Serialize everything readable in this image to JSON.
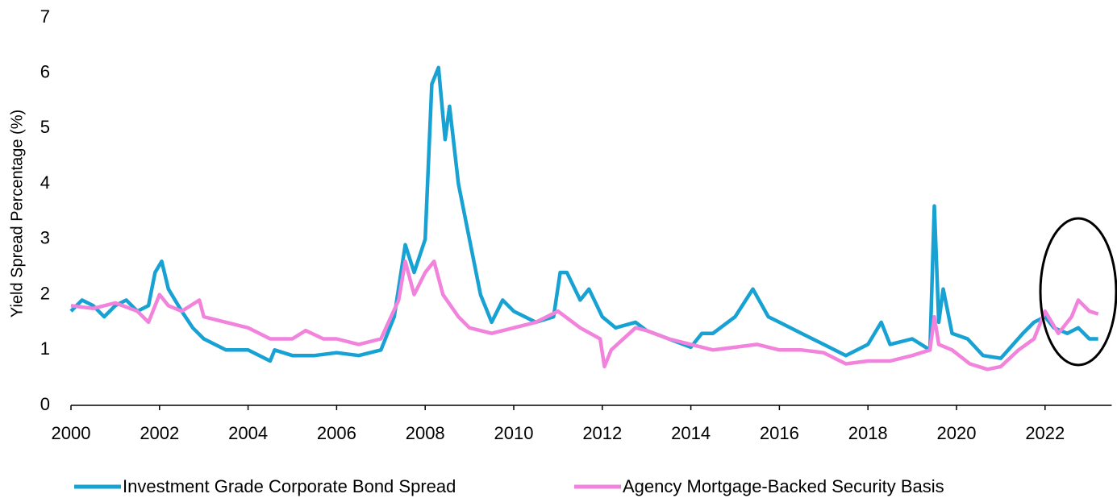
{
  "chart_data": {
    "type": "line",
    "y_label": "Yield Spread Percentage (%)",
    "xlim": [
      2000,
      2023.25
    ],
    "xticks": [
      2000,
      2002,
      2004,
      2006,
      2008,
      2010,
      2012,
      2014,
      2016,
      2018,
      2020,
      2022
    ],
    "ylim": [
      0,
      7
    ],
    "yticks": [
      0,
      1,
      2,
      3,
      4,
      5,
      6,
      7
    ],
    "grid": false,
    "legend": "bottom",
    "series": [
      {
        "name": "Investment Grade Corporate Bond Spread",
        "color": "#17a2d3",
        "x": [
          2000,
          2000.25,
          2000.5,
          2000.75,
          2001,
          2001.25,
          2001.5,
          2001.75,
          2001.9,
          2002.05,
          2002.2,
          2002.5,
          2002.75,
          2003,
          2003.5,
          2004,
          2004.5,
          2004.6,
          2005,
          2005.5,
          2006,
          2006.5,
          2007,
          2007.3,
          2007.55,
          2007.75,
          2008,
          2008.15,
          2008.3,
          2008.45,
          2008.55,
          2008.75,
          2009,
          2009.25,
          2009.5,
          2009.75,
          2010,
          2010.5,
          2010.9,
          2011.05,
          2011.2,
          2011.5,
          2011.7,
          2012,
          2012.3,
          2012.75,
          2013,
          2013.5,
          2014,
          2014.25,
          2014.5,
          2015,
          2015.4,
          2015.75,
          2016,
          2016.5,
          2017,
          2017.5,
          2018,
          2018.3,
          2018.5,
          2019,
          2019.4,
          2019.5,
          2019.6,
          2019.7,
          2019.9,
          2020.25,
          2020.6,
          2021,
          2021.5,
          2021.75,
          2022,
          2022.2,
          2022.5,
          2022.75,
          2023,
          2023.2
        ],
        "values": [
          1.7,
          1.9,
          1.8,
          1.6,
          1.8,
          1.9,
          1.7,
          1.8,
          2.4,
          2.6,
          2.1,
          1.7,
          1.4,
          1.2,
          1.0,
          1.0,
          0.8,
          1.0,
          0.9,
          0.9,
          0.95,
          0.9,
          1.0,
          1.6,
          2.9,
          2.4,
          3.0,
          5.8,
          6.1,
          4.8,
          5.4,
          4.0,
          3.0,
          2.0,
          1.5,
          1.9,
          1.7,
          1.5,
          1.6,
          2.4,
          2.4,
          1.9,
          2.1,
          1.6,
          1.4,
          1.5,
          1.35,
          1.2,
          1.05,
          1.3,
          1.3,
          1.6,
          2.1,
          1.6,
          1.5,
          1.3,
          1.1,
          0.9,
          1.1,
          1.5,
          1.1,
          1.2,
          1.0,
          3.6,
          1.5,
          2.1,
          1.3,
          1.2,
          0.9,
          0.85,
          1.3,
          1.5,
          1.6,
          1.4,
          1.3,
          1.4,
          1.2,
          1.2
        ]
      },
      {
        "name": "Agency Mortgage-Backed Security Basis",
        "color": "#f283dc",
        "x": [
          2000,
          2000.5,
          2001,
          2001.5,
          2001.75,
          2002,
          2002.2,
          2002.5,
          2002.9,
          2003,
          2003.5,
          2004,
          2004.5,
          2005,
          2005.3,
          2005.7,
          2006,
          2006.5,
          2007,
          2007.4,
          2007.55,
          2007.75,
          2008,
          2008.2,
          2008.4,
          2008.75,
          2009,
          2009.5,
          2010,
          2010.5,
          2011,
          2011.5,
          2011.95,
          2012.05,
          2012.2,
          2012.75,
          2013,
          2013.5,
          2014,
          2014.5,
          2015,
          2015.5,
          2016,
          2016.5,
          2017,
          2017.5,
          2018,
          2018.5,
          2019,
          2019.4,
          2019.5,
          2019.6,
          2019.9,
          2020.3,
          2020.7,
          2021,
          2021.4,
          2021.75,
          2022,
          2022.3,
          2022.6,
          2022.75,
          2023,
          2023.2
        ],
        "values": [
          1.8,
          1.75,
          1.85,
          1.7,
          1.5,
          2.0,
          1.8,
          1.7,
          1.9,
          1.6,
          1.5,
          1.4,
          1.2,
          1.2,
          1.35,
          1.2,
          1.2,
          1.1,
          1.2,
          1.9,
          2.6,
          2.0,
          2.4,
          2.6,
          2.0,
          1.6,
          1.4,
          1.3,
          1.4,
          1.5,
          1.7,
          1.4,
          1.2,
          0.7,
          1.0,
          1.4,
          1.35,
          1.2,
          1.1,
          1.0,
          1.05,
          1.1,
          1.0,
          1.0,
          0.95,
          0.75,
          0.8,
          0.8,
          0.9,
          1.0,
          1.6,
          1.1,
          1.0,
          0.75,
          0.65,
          0.7,
          1.0,
          1.2,
          1.7,
          1.3,
          1.6,
          1.9,
          1.7,
          1.65
        ]
      }
    ]
  }
}
